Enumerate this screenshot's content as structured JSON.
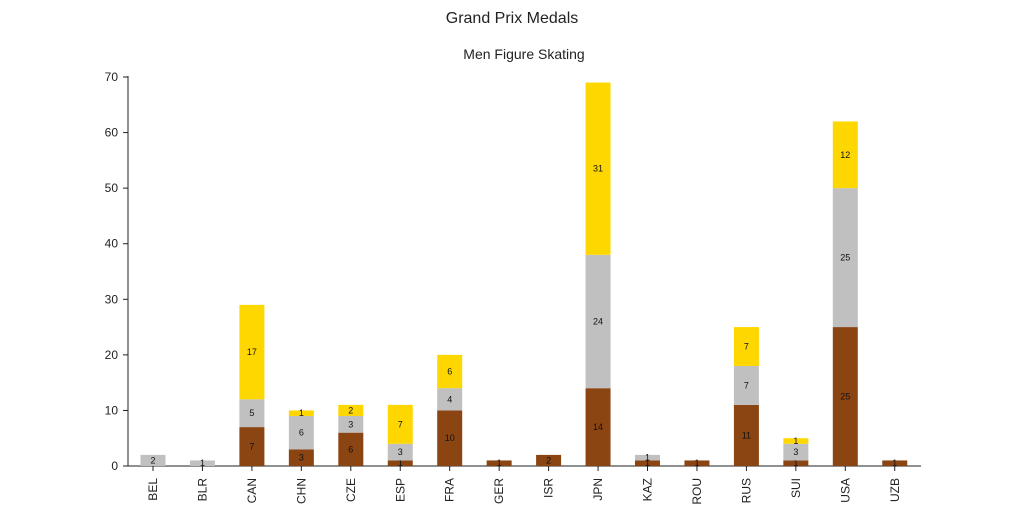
{
  "chart_data": {
    "type": "bar",
    "stacked": true,
    "title": "Grand Prix Medals",
    "subtitle": "Men Figure Skating",
    "xlabel": "",
    "ylabel": "",
    "ylim": [
      0,
      70
    ],
    "yticks": [
      0,
      10,
      20,
      30,
      40,
      50,
      60,
      70
    ],
    "grid": false,
    "categories": [
      "BEL",
      "BLR",
      "CAN",
      "CHN",
      "CZE",
      "ESP",
      "FRA",
      "GER",
      "ISR",
      "JPN",
      "KAZ",
      "ROU",
      "RUS",
      "SUI",
      "USA",
      "UZB"
    ],
    "series": [
      {
        "key": "bronze",
        "color": "#8B4513",
        "values": [
          0,
          0,
          7,
          3,
          6,
          1,
          10,
          1,
          2,
          14,
          1,
          1,
          11,
          1,
          25,
          1
        ]
      },
      {
        "key": "silver",
        "color": "#C0C0C0",
        "values": [
          2,
          1,
          5,
          6,
          3,
          3,
          4,
          0,
          0,
          24,
          1,
          0,
          7,
          3,
          25,
          0
        ]
      },
      {
        "key": "gold",
        "color": "#FFD700",
        "values": [
          0,
          0,
          17,
          1,
          2,
          7,
          6,
          0,
          0,
          31,
          0,
          0,
          7,
          1,
          12,
          0
        ]
      }
    ]
  }
}
